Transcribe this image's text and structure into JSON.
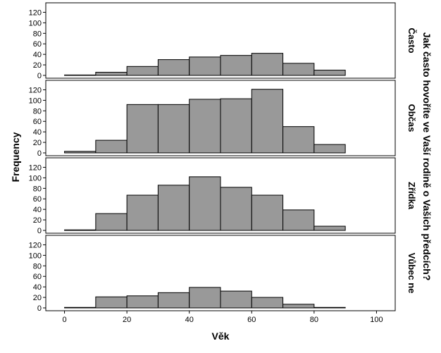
{
  "chart_data": {
    "type": "bar",
    "chart_subtype": "faceted-histogram",
    "xlabel": "Věk",
    "ylabel": "Frequency",
    "facet_title": "Jak často hovoříte ve Vaší rodině o Vašich předcích?",
    "x_ticks": [
      0,
      20,
      40,
      60,
      80,
      100
    ],
    "y_ticks": [
      0,
      20,
      40,
      60,
      80,
      100,
      120
    ],
    "xlim": [
      -6,
      106
    ],
    "ylim": [
      0,
      130
    ],
    "bin_edges": [
      0,
      10,
      20,
      30,
      40,
      50,
      60,
      70,
      80,
      90
    ],
    "bar_color": "#999999",
    "grid": false,
    "panels": [
      {
        "label": "Často",
        "values": [
          0,
          6,
          17,
          30,
          35,
          38,
          42,
          23,
          10
        ]
      },
      {
        "label": "Občas",
        "values": [
          3,
          24,
          92,
          92,
          102,
          103,
          121,
          50,
          16
        ]
      },
      {
        "label": "Zřídka",
        "values": [
          1,
          32,
          67,
          86,
          102,
          82,
          67,
          39,
          8
        ]
      },
      {
        "label": "Vůbec ne",
        "values": [
          1,
          21,
          23,
          29,
          39,
          32,
          20,
          7,
          1
        ]
      }
    ]
  }
}
